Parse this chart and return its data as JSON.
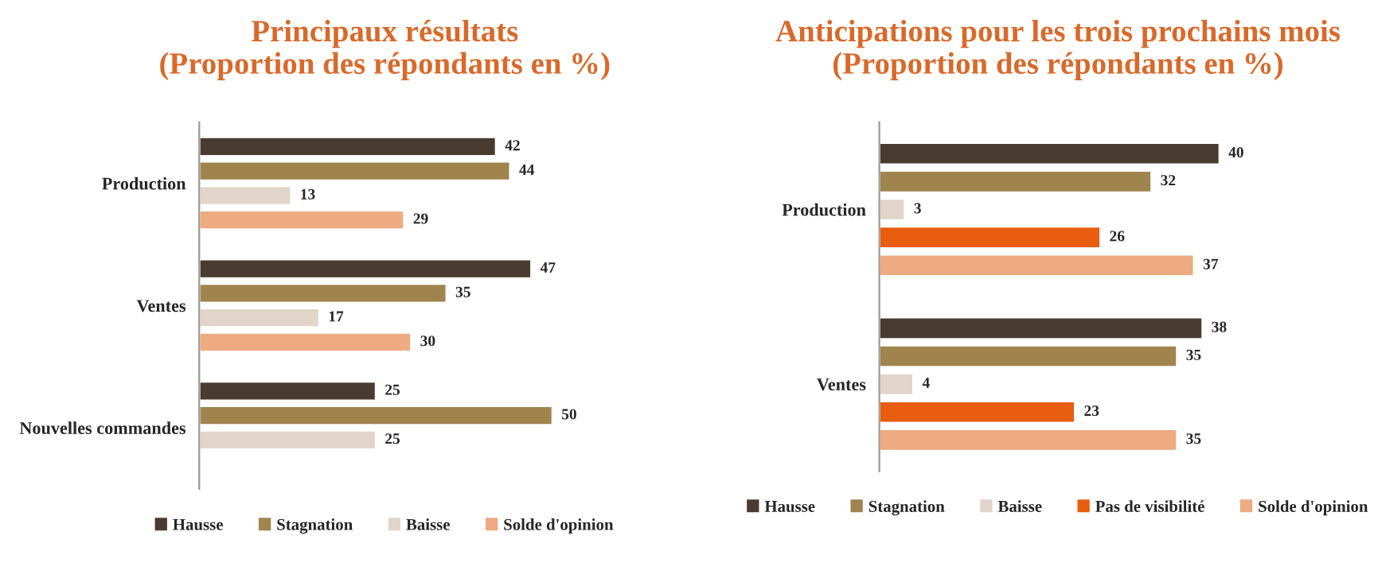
{
  "chart_data": [
    {
      "type": "bar",
      "orientation": "horizontal",
      "title": "Principaux résultats\n(Proportion des répondants en %)",
      "categories": [
        "Production",
        "Ventes",
        "Nouvelles commandes"
      ],
      "data_labels": true,
      "legend": "bottom",
      "grid": false,
      "series": [
        {
          "name": "Hausse",
          "color": "#4a3b30",
          "values": [
            42,
            47,
            25
          ]
        },
        {
          "name": "Stagnation",
          "color": "#a0844e",
          "values": [
            44,
            35,
            50
          ]
        },
        {
          "name": "Baisse",
          "color": "#e0d5c8",
          "values": [
            13,
            17,
            25
          ]
        },
        {
          "name": "Solde d'opinion",
          "color": "#eeaa80",
          "values": [
            29,
            30,
            null
          ]
        }
      ]
    },
    {
      "type": "bar",
      "orientation": "horizontal",
      "title": "Anticipations pour les trois prochains mois\n(Proportion des répondants en %)",
      "categories": [
        "Production",
        "Ventes"
      ],
      "data_labels": true,
      "legend": "bottom",
      "grid": false,
      "series": [
        {
          "name": "Hausse",
          "color": "#4a3b30",
          "values": [
            40,
            38
          ]
        },
        {
          "name": "Stagnation",
          "color": "#a0844e",
          "values": [
            32,
            35
          ]
        },
        {
          "name": "Baisse",
          "color": "#e0d5c8",
          "values": [
            3,
            4
          ]
        },
        {
          "name": "Pas de visibilité",
          "color": "#e85d10",
          "values": [
            26,
            23
          ]
        },
        {
          "name": "Solde d'opinion",
          "color": "#eeaa80",
          "values": [
            37,
            35
          ]
        }
      ]
    }
  ]
}
